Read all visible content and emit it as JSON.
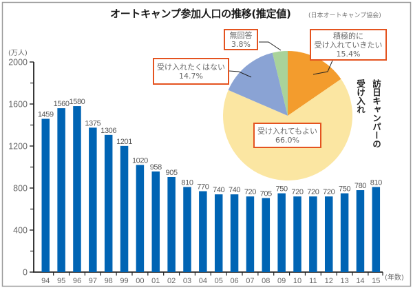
{
  "title": "オートキャンプ参加人口の推移(推定値)",
  "source": "(日本オートキャンプ協会)",
  "colors": {
    "bar": "#0064b4",
    "axis": "#222222",
    "callout_border": "#e4531f",
    "frame": "#9a9a9a"
  },
  "chart_data": [
    {
      "type": "bar",
      "title": "オートキャンプ参加人口の推移(推定値)",
      "ylabel": "(万人)",
      "xlabel": "(年数)",
      "categories": [
        "94",
        "95",
        "96",
        "97",
        "98",
        "99",
        "00",
        "01",
        "02",
        "03",
        "04",
        "05",
        "06",
        "07",
        "08",
        "09",
        "10",
        "11",
        "12",
        "13",
        "14",
        "15"
      ],
      "values": [
        1459,
        1560,
        1580,
        1375,
        1306,
        1201,
        1020,
        958,
        905,
        810,
        770,
        740,
        740,
        720,
        705,
        750,
        720,
        720,
        720,
        750,
        780,
        810
      ],
      "ylim": [
        0,
        2000
      ],
      "yticks": [
        0,
        400,
        800,
        1200,
        1600,
        2000
      ],
      "minor_yticks": [
        200,
        600,
        1000,
        1400,
        1800
      ],
      "grid": false,
      "data_labels": true
    },
    {
      "type": "pie",
      "title": "訪日キャンパーの受け入れ",
      "title_lines": [
        "訪日キャンパーの",
        "受け入れ"
      ],
      "slices": [
        {
          "label": "積極的に受け入れていきたい",
          "label_lines": [
            "積極的に",
            "受け入れていきたい"
          ],
          "value": 15.4,
          "display": "15.4%",
          "color": "#f39c2d"
        },
        {
          "label": "受け入れてもよい",
          "value": 66.0,
          "display": "66.0%",
          "color": "#fbe6a2"
        },
        {
          "label": "受け入れたくはない",
          "value": 14.7,
          "display": "14.7%",
          "color": "#8aa3d4"
        },
        {
          "label": "無回答",
          "value": 3.8,
          "display": "3.8%",
          "color": "#a9d39a"
        }
      ]
    }
  ]
}
